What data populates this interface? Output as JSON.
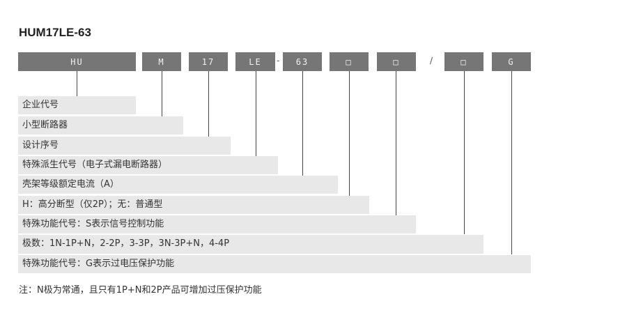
{
  "title": "HUM17LE-63",
  "codes": [
    "HU",
    "M",
    "17",
    "LE",
    "63",
    "□",
    "□",
    "□",
    "G"
  ],
  "separators": {
    "dash": "-",
    "slash": "/"
  },
  "rows": [
    "企业代号",
    "小型断路器",
    "设计序号",
    "特殊派生代号（电子式漏电断路器）",
    "壳架等级额定电流（A）",
    "H：高分断型（仅2P）；无：普通型",
    "特殊功能代号：S表示信号控制功能",
    "极数：1N-1P+N，2-2P，3-3P，3N-3P+N，4-4P",
    "特殊功能代号：G表示过电压保护功能"
  ],
  "note": "注：N极为常通，且只有1P+N和2P产品可增加过压保护功能",
  "colors": {
    "code_box": "#767676",
    "row_bg": "#e9e8e8"
  }
}
